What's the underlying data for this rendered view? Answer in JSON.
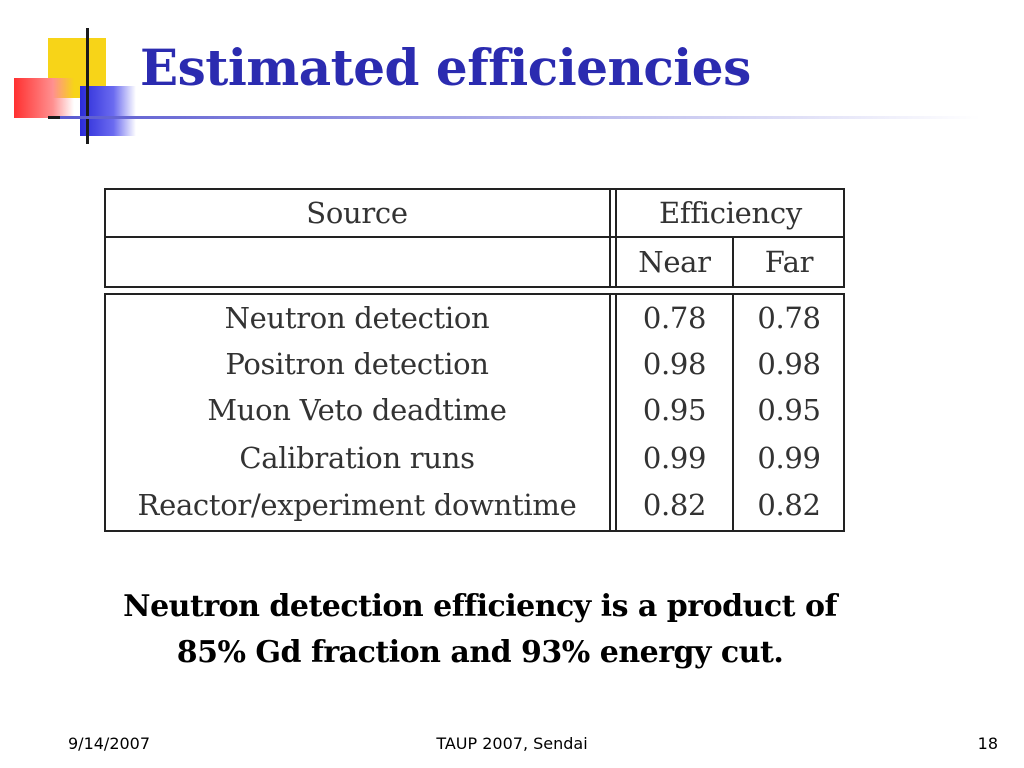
{
  "slide": {
    "title": "Estimated efficiencies",
    "table": {
      "header": {
        "source": "Source",
        "efficiency": "Efficiency",
        "near": "Near",
        "far": "Far"
      },
      "rows": [
        {
          "source": "Neutron detection",
          "near": "0.78",
          "far": "0.78"
        },
        {
          "source": "Positron detection",
          "near": "0.98",
          "far": "0.98"
        },
        {
          "source": "Muon Veto deadtime",
          "near": "0.95",
          "far": "0.95"
        },
        {
          "source": "Calibration runs",
          "near": "0.99",
          "far": "0.99"
        },
        {
          "source": "Reactor/experiment downtime",
          "near": "0.82",
          "far": "0.82"
        }
      ]
    },
    "caption": {
      "line1": "Neutron detection efficiency is a product of",
      "line2": "85% Gd fraction and 93% energy cut."
    }
  },
  "footer": {
    "date": "9/14/2007",
    "event": "TAUP 2007, Sendai",
    "page_number": "18"
  },
  "colors": {
    "title": "#2b2bb0",
    "logo_yellow": "#f7d418",
    "logo_red": "#ff3030",
    "logo_blue": "#2b2bd8"
  }
}
